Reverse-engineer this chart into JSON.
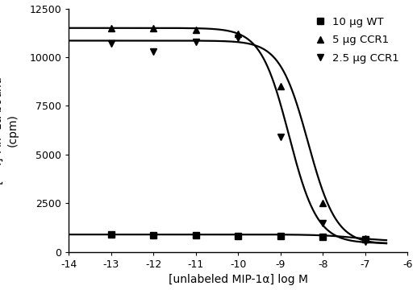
{
  "title": "",
  "xlabel": "[unlabeled MIP-1α] log M",
  "xlim": [
    -14,
    -6
  ],
  "ylim": [
    0,
    12500
  ],
  "xticks": [
    -14,
    -13,
    -12,
    -11,
    -10,
    -9,
    -8,
    -7,
    -6
  ],
  "yticks": [
    0,
    2500,
    5000,
    7500,
    10000,
    12500
  ],
  "series": [
    {
      "label": "10 μg WT",
      "marker": "s",
      "color": "#000000",
      "x_data": [
        -13,
        -12,
        -11,
        -10,
        -9,
        -8,
        -7
      ],
      "y_data": [
        900,
        850,
        870,
        840,
        820,
        760,
        650
      ],
      "top": 900,
      "bottom": 550,
      "ic50": -7.2,
      "hill": 1.0,
      "flat": true
    },
    {
      "label": "5 μg CCR1",
      "marker": "^",
      "color": "#000000",
      "x_data": [
        -13,
        -12,
        -11,
        -10,
        -9,
        -8,
        -7
      ],
      "y_data": [
        11500,
        11500,
        11400,
        11200,
        8500,
        2500,
        700
      ],
      "top": 11500,
      "bottom": 450,
      "ic50": -8.8,
      "hill": 1.3,
      "flat": false
    },
    {
      "label": "2.5 μg CCR1",
      "marker": "v",
      "color": "#000000",
      "x_data": [
        -13,
        -12,
        -11,
        -10,
        -9,
        -8,
        -7
      ],
      "y_data": [
        10700,
        10300,
        10800,
        11000,
        5900,
        1500,
        550
      ],
      "top": 10850,
      "bottom": 400,
      "ic50": -8.35,
      "hill": 1.3,
      "flat": false
    }
  ],
  "background_color": "#ffffff",
  "font_size": 10,
  "marker_size": 6
}
